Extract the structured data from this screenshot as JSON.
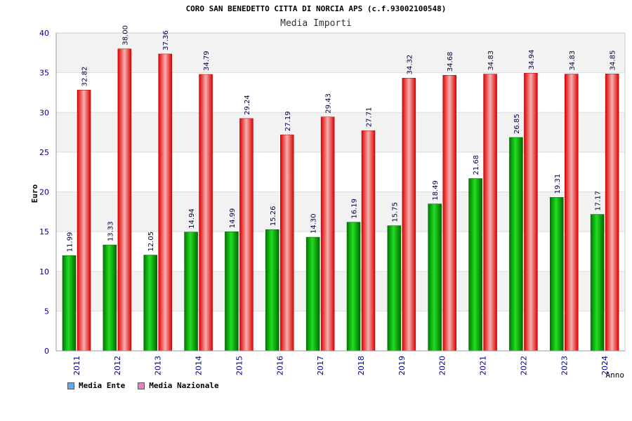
{
  "chart_data": {
    "type": "bar",
    "title": "CORO SAN BENEDETTO CITTA DI NORCIA APS (c.f.93002100548)",
    "subtitle": "Media Importi",
    "xlabel": "Anno",
    "ylabel": "Euro",
    "ylim": [
      0,
      40
    ],
    "yticks": [
      0,
      5,
      10,
      15,
      20,
      25,
      30,
      35,
      40
    ],
    "categories": [
      "2011",
      "2012",
      "2013",
      "2014",
      "2015",
      "2016",
      "2017",
      "2018",
      "2019",
      "2020",
      "2021",
      "2022",
      "2023",
      "2024"
    ],
    "series": [
      {
        "name": "Media Ente",
        "color": "#00aa00",
        "values": [
          11.99,
          13.33,
          12.05,
          14.94,
          14.99,
          15.26,
          14.3,
          16.19,
          15.75,
          18.49,
          21.68,
          26.85,
          19.31,
          17.17
        ],
        "labels": [
          "11.99",
          "13.33",
          "12.05",
          "14.94",
          "14.99",
          "15.26",
          "14.30",
          "16.19",
          "15.75",
          "18.49",
          "21.68",
          "26.85",
          "19.31",
          "17.17"
        ]
      },
      {
        "name": "Media Nazionale",
        "color": "#ee1111",
        "values": [
          32.82,
          38.0,
          37.36,
          34.79,
          29.24,
          27.19,
          29.43,
          27.71,
          34.32,
          34.68,
          34.83,
          34.94,
          34.83,
          34.85
        ],
        "labels": [
          "32.82",
          "38.00",
          "37.36",
          "34.79",
          "29.24",
          "27.19",
          "29.43",
          "27.71",
          "34.32",
          "34.68",
          "34.83",
          "34.94",
          "34.83",
          "34.85"
        ]
      }
    ],
    "legend": [
      {
        "label": "Media Ente",
        "color": "#66aaee"
      },
      {
        "label": "Media Nazionale",
        "color": "#dd88bb"
      }
    ]
  }
}
